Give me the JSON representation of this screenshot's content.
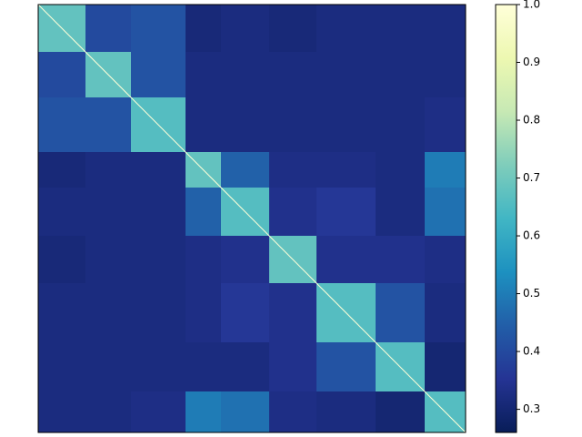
{
  "chart_data": {
    "type": "heatmap",
    "colormap": "YlGnBu",
    "edges": [
      0,
      52,
      102,
      162,
      201,
      254,
      306,
      371,
      425,
      470
    ],
    "values": [
      [
        0.68,
        0.4,
        0.42,
        0.31,
        0.32,
        0.31,
        0.32,
        0.32,
        0.32
      ],
      [
        0.4,
        0.68,
        0.42,
        0.32,
        0.32,
        0.32,
        0.32,
        0.32,
        0.32
      ],
      [
        0.42,
        0.42,
        0.66,
        0.32,
        0.32,
        0.32,
        0.32,
        0.32,
        0.33
      ],
      [
        0.31,
        0.32,
        0.32,
        0.68,
        0.45,
        0.33,
        0.33,
        0.32,
        0.5
      ],
      [
        0.32,
        0.32,
        0.32,
        0.45,
        0.66,
        0.34,
        0.36,
        0.32,
        0.48
      ],
      [
        0.31,
        0.32,
        0.32,
        0.33,
        0.34,
        0.68,
        0.34,
        0.34,
        0.33
      ],
      [
        0.32,
        0.32,
        0.32,
        0.33,
        0.36,
        0.34,
        0.66,
        0.42,
        0.32
      ],
      [
        0.32,
        0.32,
        0.32,
        0.32,
        0.32,
        0.34,
        0.42,
        0.66,
        0.3
      ],
      [
        0.32,
        0.32,
        0.33,
        0.5,
        0.48,
        0.33,
        0.32,
        0.3,
        0.66
      ]
    ],
    "colorbar": {
      "ylim": [
        0.26,
        1.0
      ],
      "yticks": [
        0.3,
        0.4,
        0.5,
        0.6,
        0.7,
        0.8,
        0.9,
        {
          "value": 1.0,
          "label": "1.0"
        }
      ]
    }
  }
}
